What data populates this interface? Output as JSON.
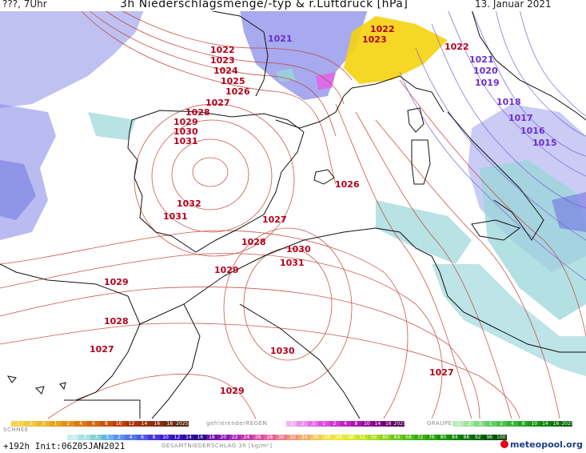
{
  "header": {
    "left": "???, 7Uhr",
    "title": "3h Niederschlagsmenge/-typ & r.Luftdruck [hPa]",
    "date": "13. Januar 2021"
  },
  "colors": {
    "isobar_high": "#c0392b",
    "isobar_low": "#7b5bd6",
    "label_high": "#b3001b",
    "label_low": "#6a2fd1",
    "snow": "#8a8ee8",
    "rain": "#9ad6d8",
    "precip_yellow": "#f5d30e",
    "precip_magenta": "#e066e8",
    "coast": "#111111"
  },
  "pressure_labels": [
    {
      "value": "1021"
    },
    {
      "value": "1022"
    },
    {
      "value": "1023"
    },
    {
      "value": "1022"
    },
    {
      "value": "1023"
    },
    {
      "value": "1024"
    },
    {
      "value": "1025"
    },
    {
      "value": "1026"
    },
    {
      "value": "1027"
    },
    {
      "value": "1028"
    },
    {
      "value": "1029"
    },
    {
      "value": "1030"
    },
    {
      "value": "1031"
    },
    {
      "value": "1032"
    },
    {
      "value": "1031"
    },
    {
      "value": "1026"
    },
    {
      "value": "1027"
    },
    {
      "value": "1028"
    },
    {
      "value": "1029"
    },
    {
      "value": "1030"
    },
    {
      "value": "1031"
    },
    {
      "value": "1029"
    },
    {
      "value": "1028"
    },
    {
      "value": "1027"
    },
    {
      "value": "1030"
    },
    {
      "value": "1029"
    },
    {
      "value": "1027"
    },
    {
      "value": "1022"
    },
    {
      "value": "1021"
    },
    {
      "value": "1020"
    },
    {
      "value": "1019"
    },
    {
      "value": "1018"
    },
    {
      "value": "1017"
    },
    {
      "value": "1016"
    },
    {
      "value": "1015"
    }
  ],
  "legend": {
    "schnee_label": "SCHNEE",
    "regen_label": "gefrierenderREGEN",
    "graupel_label": "GRAUPEL",
    "gesamt_label": "GESAMTNIEDERSCHLAG 3h [kg/m²]",
    "run_info": "+192h Init:06Z05JAN2021",
    "logo_text": "meteopool.org",
    "snow_scale": [
      ".1",
      ".2",
      ".5",
      "1",
      "2",
      "4",
      "6",
      "8",
      "10",
      "12",
      "14",
      "16",
      "18",
      "2025+"
    ],
    "freezing_scale": [
      ".1",
      ".2",
      ".5",
      "1",
      "2",
      "4",
      "8",
      "10",
      "14",
      "16",
      "2025+"
    ],
    "graupel_scale": [
      ".1",
      ".2",
      ".5",
      "1",
      "2",
      "4",
      "8",
      "10",
      "14",
      "16",
      "2025+"
    ],
    "total_scale": [
      ".1",
      ".2",
      ".5",
      "1",
      "2",
      "4",
      "6",
      "8",
      "10",
      "12",
      "14",
      "16",
      "18",
      "20",
      "22",
      "24",
      "26",
      "28",
      "30",
      "32",
      "34",
      "36",
      "40",
      "44",
      "48",
      "52",
      "56",
      "60",
      "64",
      "68",
      "72",
      "76",
      "80",
      "84",
      "88",
      "92",
      "96",
      "100"
    ]
  }
}
